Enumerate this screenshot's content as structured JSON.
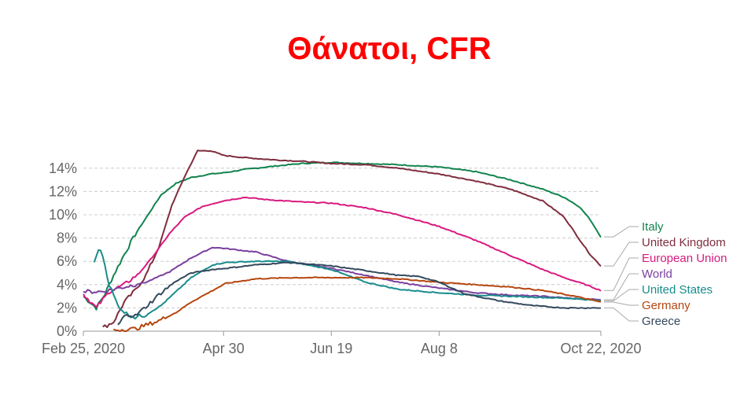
{
  "title": "Θάνατοι, CFR",
  "colors": {
    "Italy": "#12834f",
    "United Kingdom": "#7f2d3e",
    "European Union": "#d9197f",
    "World": "#7b3f9e",
    "United States": "#188c8c",
    "Germany": "#b6460f",
    "Greece": "#34495e"
  },
  "chart_data": {
    "type": "line",
    "title": "Θάνατοι, CFR",
    "xlabel": "",
    "ylabel": "",
    "x_ticks": [
      "Feb 25, 2020",
      "Apr 30",
      "Jun 19",
      "Aug 8",
      "Oct 22, 2020"
    ],
    "x_tick_dates": [
      "2020-02-25",
      "2020-04-30",
      "2020-06-19",
      "2020-08-08",
      "2020-10-22"
    ],
    "xlim": [
      "2020-02-25",
      "2020-10-22"
    ],
    "y_ticks": [
      "0%",
      "2%",
      "4%",
      "6%",
      "8%",
      "10%",
      "12%",
      "14%"
    ],
    "ylim": [
      0,
      15
    ],
    "grid": true,
    "legend_placement": "right",
    "legend_order": [
      "Italy",
      "United Kingdom",
      "European Union",
      "World",
      "United States",
      "Germany",
      "Greece"
    ],
    "series": [
      {
        "name": "Italy",
        "x": [
          "2020-02-25",
          "2020-02-28",
          "2020-03-02",
          "2020-03-06",
          "2020-03-10",
          "2020-03-15",
          "2020-03-20",
          "2020-03-26",
          "2020-04-01",
          "2020-04-08",
          "2020-04-15",
          "2020-04-24",
          "2020-04-30",
          "2020-05-10",
          "2020-05-25",
          "2020-06-05",
          "2020-06-19",
          "2020-07-05",
          "2020-07-20",
          "2020-08-08",
          "2020-08-25",
          "2020-09-10",
          "2020-09-25",
          "2020-10-05",
          "2020-10-12",
          "2020-10-17",
          "2020-10-22"
        ],
        "y": [
          3.0,
          2.5,
          2.0,
          3.2,
          4.8,
          6.6,
          8.3,
          10.0,
          11.7,
          12.7,
          13.2,
          13.5,
          13.6,
          13.9,
          14.2,
          14.4,
          14.5,
          14.4,
          14.3,
          14.1,
          13.7,
          13.0,
          12.2,
          11.5,
          10.7,
          9.6,
          8.1
        ]
      },
      {
        "name": "United Kingdom",
        "x": [
          "2020-03-05",
          "2020-03-10",
          "2020-03-15",
          "2020-03-20",
          "2020-03-25",
          "2020-03-31",
          "2020-04-06",
          "2020-04-12",
          "2020-04-18",
          "2020-04-24",
          "2020-04-30",
          "2020-05-10",
          "2020-05-25",
          "2020-06-05",
          "2020-06-19",
          "2020-07-05",
          "2020-07-20",
          "2020-08-08",
          "2020-08-25",
          "2020-09-10",
          "2020-09-25",
          "2020-10-05",
          "2020-10-12",
          "2020-10-17",
          "2020-10-22"
        ],
        "y": [
          0.3,
          0.8,
          2.5,
          3.5,
          4.8,
          7.2,
          10.8,
          13.3,
          15.5,
          15.5,
          15.1,
          14.9,
          14.7,
          14.6,
          14.4,
          14.3,
          14.0,
          13.5,
          12.9,
          12.2,
          11.2,
          9.8,
          7.9,
          6.6,
          5.6
        ]
      },
      {
        "name": "European Union",
        "x": [
          "2020-02-25",
          "2020-03-02",
          "2020-03-08",
          "2020-03-15",
          "2020-03-22",
          "2020-03-29",
          "2020-04-05",
          "2020-04-12",
          "2020-04-20",
          "2020-04-30",
          "2020-05-10",
          "2020-05-20",
          "2020-06-05",
          "2020-06-19",
          "2020-07-05",
          "2020-07-20",
          "2020-08-08",
          "2020-08-25",
          "2020-09-10",
          "2020-09-25",
          "2020-10-05",
          "2020-10-15",
          "2020-10-22"
        ],
        "y": [
          3.2,
          2.0,
          3.4,
          4.0,
          5.0,
          6.6,
          8.4,
          9.8,
          10.7,
          11.2,
          11.5,
          11.3,
          11.1,
          11.0,
          10.6,
          10.0,
          9.0,
          7.8,
          6.5,
          5.3,
          4.6,
          4.0,
          3.5
        ]
      },
      {
        "name": "World",
        "x": [
          "2020-02-25",
          "2020-03-05",
          "2020-03-15",
          "2020-03-25",
          "2020-04-05",
          "2020-04-15",
          "2020-04-25",
          "2020-05-01",
          "2020-05-15",
          "2020-05-30",
          "2020-06-19",
          "2020-07-05",
          "2020-07-20",
          "2020-08-08",
          "2020-08-25",
          "2020-09-10",
          "2020-09-25",
          "2020-10-10",
          "2020-10-22"
        ],
        "y": [
          3.4,
          3.4,
          3.8,
          4.2,
          5.1,
          6.3,
          7.2,
          7.1,
          6.8,
          6.0,
          5.4,
          4.8,
          4.2,
          3.7,
          3.3,
          3.1,
          3.0,
          2.8,
          2.7
        ]
      },
      {
        "name": "United States",
        "x": [
          "2020-03-01",
          "2020-03-03",
          "2020-03-05",
          "2020-03-08",
          "2020-03-12",
          "2020-03-16",
          "2020-03-20",
          "2020-03-25",
          "2020-04-01",
          "2020-04-08",
          "2020-04-15",
          "2020-04-25",
          "2020-05-01",
          "2020-05-15",
          "2020-05-30",
          "2020-06-19",
          "2020-07-05",
          "2020-07-20",
          "2020-08-08",
          "2020-08-25",
          "2020-09-10",
          "2020-09-25",
          "2020-10-10",
          "2020-10-22"
        ],
        "y": [
          5.8,
          7.1,
          6.5,
          4.0,
          2.2,
          1.5,
          1.2,
          1.4,
          2.2,
          3.4,
          4.6,
          5.7,
          5.9,
          6.0,
          6.0,
          5.3,
          4.2,
          3.6,
          3.3,
          3.1,
          3.0,
          2.9,
          2.8,
          2.6
        ]
      },
      {
        "name": "Germany",
        "x": [
          "2020-03-10",
          "2020-03-20",
          "2020-03-31",
          "2020-04-08",
          "2020-04-15",
          "2020-04-25",
          "2020-05-01",
          "2020-05-15",
          "2020-06-01",
          "2020-06-19",
          "2020-07-05",
          "2020-07-20",
          "2020-08-08",
          "2020-08-25",
          "2020-09-10",
          "2020-09-25",
          "2020-10-10",
          "2020-10-22"
        ],
        "y": [
          0.1,
          0.2,
          0.9,
          1.6,
          2.5,
          3.5,
          4.1,
          4.5,
          4.6,
          4.6,
          4.6,
          4.5,
          4.2,
          4.0,
          3.8,
          3.5,
          3.0,
          2.5
        ]
      },
      {
        "name": "Greece",
        "x": [
          "2020-03-12",
          "2020-03-16",
          "2020-03-20",
          "2020-03-25",
          "2020-04-01",
          "2020-04-08",
          "2020-04-15",
          "2020-04-25",
          "2020-05-01",
          "2020-05-15",
          "2020-05-30",
          "2020-06-19",
          "2020-07-05",
          "2020-07-20",
          "2020-07-30",
          "2020-08-08",
          "2020-08-20",
          "2020-09-05",
          "2020-09-20",
          "2020-10-05",
          "2020-10-22"
        ],
        "y": [
          0.5,
          1.5,
          1.3,
          2.1,
          3.3,
          4.3,
          5.0,
          5.3,
          5.4,
          5.7,
          5.9,
          5.6,
          5.2,
          4.8,
          4.7,
          4.2,
          3.2,
          2.6,
          2.2,
          2.0,
          2.0
        ]
      }
    ]
  }
}
